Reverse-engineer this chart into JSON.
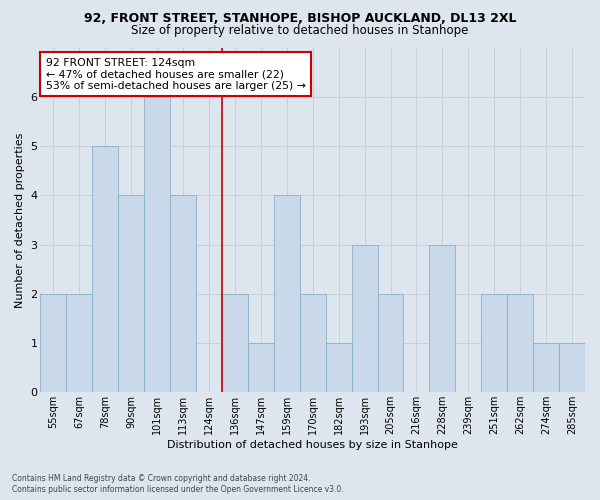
{
  "title": "92, FRONT STREET, STANHOPE, BISHOP AUCKLAND, DL13 2XL",
  "subtitle": "Size of property relative to detached houses in Stanhope",
  "xlabel": "Distribution of detached houses by size in Stanhope",
  "ylabel": "Number of detached properties",
  "footer_line1": "Contains HM Land Registry data © Crown copyright and database right 2024.",
  "footer_line2": "Contains public sector information licensed under the Open Government Licence v3.0.",
  "annotation_line1": "92 FRONT STREET: 124sqm",
  "annotation_line2": "← 47% of detached houses are smaller (22)",
  "annotation_line3": "53% of semi-detached houses are larger (25) →",
  "bar_labels": [
    "55sqm",
    "67sqm",
    "78sqm",
    "90sqm",
    "101sqm",
    "113sqm",
    "124sqm",
    "136sqm",
    "147sqm",
    "159sqm",
    "170sqm",
    "182sqm",
    "193sqm",
    "205sqm",
    "216sqm",
    "228sqm",
    "239sqm",
    "251sqm",
    "262sqm",
    "274sqm",
    "285sqm"
  ],
  "bar_values": [
    2,
    2,
    5,
    4,
    6,
    4,
    0,
    2,
    1,
    4,
    2,
    1,
    3,
    2,
    0,
    3,
    0,
    2,
    2,
    1,
    1
  ],
  "bar_color": "#c9d9ea",
  "bar_edge_color": "#8aafc8",
  "highlight_index": 6,
  "highlight_line_color": "#cc0000",
  "grid_color": "#c8d0da",
  "background_color": "#dde5ef",
  "ylim": [
    0,
    7
  ],
  "yticks": [
    0,
    1,
    2,
    3,
    4,
    5,
    6,
    7
  ],
  "annotation_box_color": "white",
  "annotation_box_edge": "#cc0000",
  "title_fontsize": 9,
  "subtitle_fontsize": 8.5
}
